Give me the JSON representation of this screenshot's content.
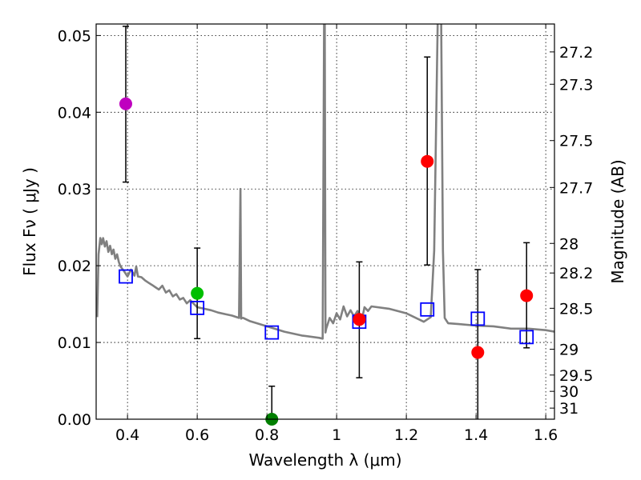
{
  "chart_data": {
    "type": "scatter",
    "xlabel": "Wavelength  λ (μm)",
    "ylabel": "Flux  Fν  ( μJy )",
    "y2label": "Magnitude (AB)",
    "xlim": [
      0.31,
      1.625
    ],
    "ylim": [
      0.0,
      0.0515
    ],
    "grid": true,
    "x_ticks": [
      0.4,
      0.6,
      0.8,
      1.0,
      1.2,
      1.4,
      1.6
    ],
    "x_tick_labels": [
      "0.4",
      "0.6",
      "0.8",
      "1",
      "1.2",
      "1.4",
      "1.6"
    ],
    "y_ticks": [
      0.0,
      0.01,
      0.02,
      0.03,
      0.04,
      0.05
    ],
    "y_tick_labels": [
      "0.00",
      "0.01",
      "0.02",
      "0.03",
      "0.04",
      "0.05"
    ],
    "mag_ticks": [
      27.2,
      27.3,
      27.5,
      27.7,
      28,
      28.2,
      28.5,
      29,
      29.5,
      30,
      31
    ],
    "mag_tick_labels": [
      "27.2",
      "27.3",
      "27.5",
      "27.7",
      "28",
      "28.2",
      "28.5",
      "29",
      "29.5",
      "30",
      "31"
    ],
    "observed": [
      {
        "x": 0.395,
        "y": 0.0411,
        "err_lo": 0.0309,
        "err_hi": 0.0512,
        "color": "#bf00bf"
      },
      {
        "x": 0.6,
        "y": 0.0164,
        "err_lo": 0.0105,
        "err_hi": 0.0223,
        "color": "#00bf00"
      },
      {
        "x": 0.814,
        "y": 0.0,
        "err_lo": 0.0,
        "err_hi": 0.0043,
        "color": "#007f00"
      },
      {
        "x": 1.065,
        "y": 0.013,
        "err_lo": 0.0054,
        "err_hi": 0.0205,
        "color": "#ff0000"
      },
      {
        "x": 1.26,
        "y": 0.0336,
        "err_lo": 0.0201,
        "err_hi": 0.0472,
        "color": "#ff0000"
      },
      {
        "x": 1.405,
        "y": 0.0087,
        "err_lo": 0.0,
        "err_hi": 0.0195,
        "color": "#ff0000"
      },
      {
        "x": 1.545,
        "y": 0.0161,
        "err_lo": 0.0093,
        "err_hi": 0.023,
        "color": "#ff0000"
      }
    ],
    "model_photometry": [
      {
        "x": 0.395,
        "y": 0.0186
      },
      {
        "x": 0.6,
        "y": 0.0145
      },
      {
        "x": 0.814,
        "y": 0.0113
      },
      {
        "x": 1.065,
        "y": 0.0127
      },
      {
        "x": 1.26,
        "y": 0.0143
      },
      {
        "x": 1.405,
        "y": 0.0131
      },
      {
        "x": 1.545,
        "y": 0.0107
      }
    ],
    "model_sed": {
      "x": [
        0.313,
        0.317,
        0.322,
        0.326,
        0.33,
        0.335,
        0.34,
        0.345,
        0.35,
        0.355,
        0.36,
        0.365,
        0.37,
        0.375,
        0.38,
        0.39,
        0.4,
        0.41,
        0.42,
        0.425,
        0.43,
        0.44,
        0.45,
        0.46,
        0.47,
        0.48,
        0.49,
        0.5,
        0.51,
        0.52,
        0.53,
        0.54,
        0.55,
        0.56,
        0.57,
        0.58,
        0.6,
        0.62,
        0.64,
        0.66,
        0.68,
        0.7,
        0.72,
        0.724,
        0.726,
        0.728,
        0.732,
        0.75,
        0.8,
        0.85,
        0.9,
        0.95,
        0.96,
        0.964,
        0.966,
        0.968,
        0.97,
        0.975,
        0.98,
        0.99,
        1.0,
        1.01,
        1.02,
        1.03,
        1.04,
        1.05,
        1.06,
        1.07,
        1.08,
        1.09,
        1.1,
        1.15,
        1.2,
        1.25,
        1.27,
        1.28,
        1.29,
        1.295,
        1.3,
        1.305,
        1.31,
        1.32,
        1.35,
        1.4,
        1.45,
        1.5,
        1.55,
        1.6,
        1.625
      ],
      "y": [
        0.0133,
        0.0215,
        0.0236,
        0.0228,
        0.0236,
        0.0225,
        0.0232,
        0.0218,
        0.0226,
        0.0215,
        0.0221,
        0.0209,
        0.0215,
        0.0205,
        0.0199,
        0.0193,
        0.0186,
        0.0195,
        0.0187,
        0.0199,
        0.0186,
        0.0185,
        0.0181,
        0.0178,
        0.0175,
        0.0172,
        0.0169,
        0.0174,
        0.0165,
        0.0168,
        0.016,
        0.0163,
        0.0156,
        0.0158,
        0.0151,
        0.0155,
        0.0146,
        0.0144,
        0.0142,
        0.0139,
        0.0137,
        0.0135,
        0.0132,
        0.03,
        0.0131,
        0.0132,
        0.0132,
        0.0128,
        0.0121,
        0.0114,
        0.0109,
        0.0106,
        0.0105,
        0.052,
        0.052,
        0.0113,
        0.0118,
        0.0125,
        0.0132,
        0.0125,
        0.0138,
        0.013,
        0.0147,
        0.0134,
        0.0142,
        0.0134,
        0.0141,
        0.0124,
        0.0146,
        0.0141,
        0.0147,
        0.0144,
        0.0138,
        0.0127,
        0.0133,
        0.022,
        0.052,
        0.052,
        0.052,
        0.022,
        0.0132,
        0.0125,
        0.0124,
        0.0122,
        0.0121,
        0.0118,
        0.0118,
        0.0116,
        0.0114
      ]
    }
  }
}
